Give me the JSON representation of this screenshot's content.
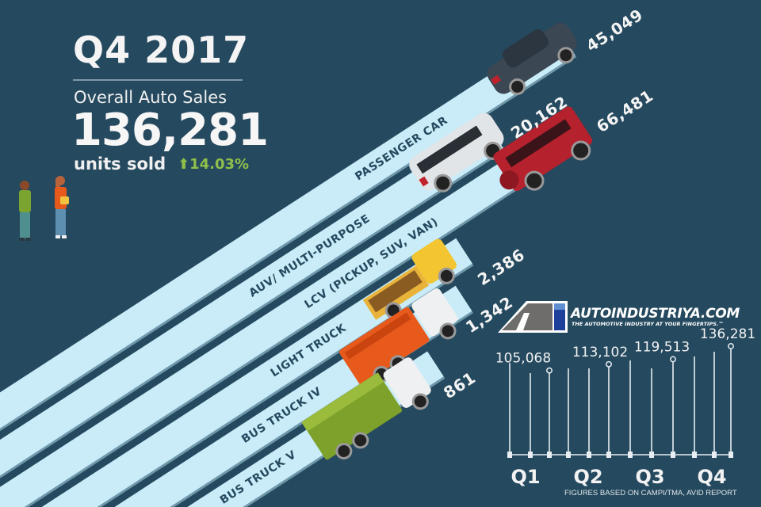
{
  "header": {
    "title": "Q4 2017",
    "subtitle": "Overall Auto Sales",
    "total": "136,281",
    "units_label": "units sold",
    "change": "14.03%",
    "change_icon": "arrow-up-icon"
  },
  "colors": {
    "background": "#25495e",
    "lane": "#c9ecf8",
    "positive": "#8fbf4a"
  },
  "segments": [
    {
      "label": "PASSENGER CAR",
      "value": "45,049",
      "vehicle": "sedan"
    },
    {
      "label": "AUV/ MULTI-PURPOSE",
      "value": "20,162",
      "vehicle": "minivan"
    },
    {
      "label": "LCV (PICKUP, SUV, VAN)",
      "value": "66,481",
      "vehicle": "suv"
    },
    {
      "label": "LIGHT TRUCK",
      "value": "2,386",
      "vehicle": "light-truck"
    },
    {
      "label": "BUS TRUCK IV",
      "value": "1,342",
      "vehicle": "dump-truck"
    },
    {
      "label": "BUS TRUCK V",
      "value": "861",
      "vehicle": "cargo-truck"
    }
  ],
  "logo": {
    "name": "AUTOINDUSTRIYA.COM",
    "tagline": "THE AUTOMOTIVE INDUSTRY AT YOUR FINGERTIPS.™"
  },
  "chart_data": {
    "type": "bar",
    "categories": [
      "Q1",
      "Q2",
      "Q3",
      "Q4"
    ],
    "values": [
      105068,
      113102,
      119513,
      136281
    ],
    "value_labels": [
      "105,068",
      "113,102",
      "119,513",
      "136,281"
    ],
    "title": "",
    "xlabel": "",
    "ylabel": "",
    "grid": false
  },
  "footnote": "FIGURES BASED ON CAMPI/TMA, AVID REPORT"
}
